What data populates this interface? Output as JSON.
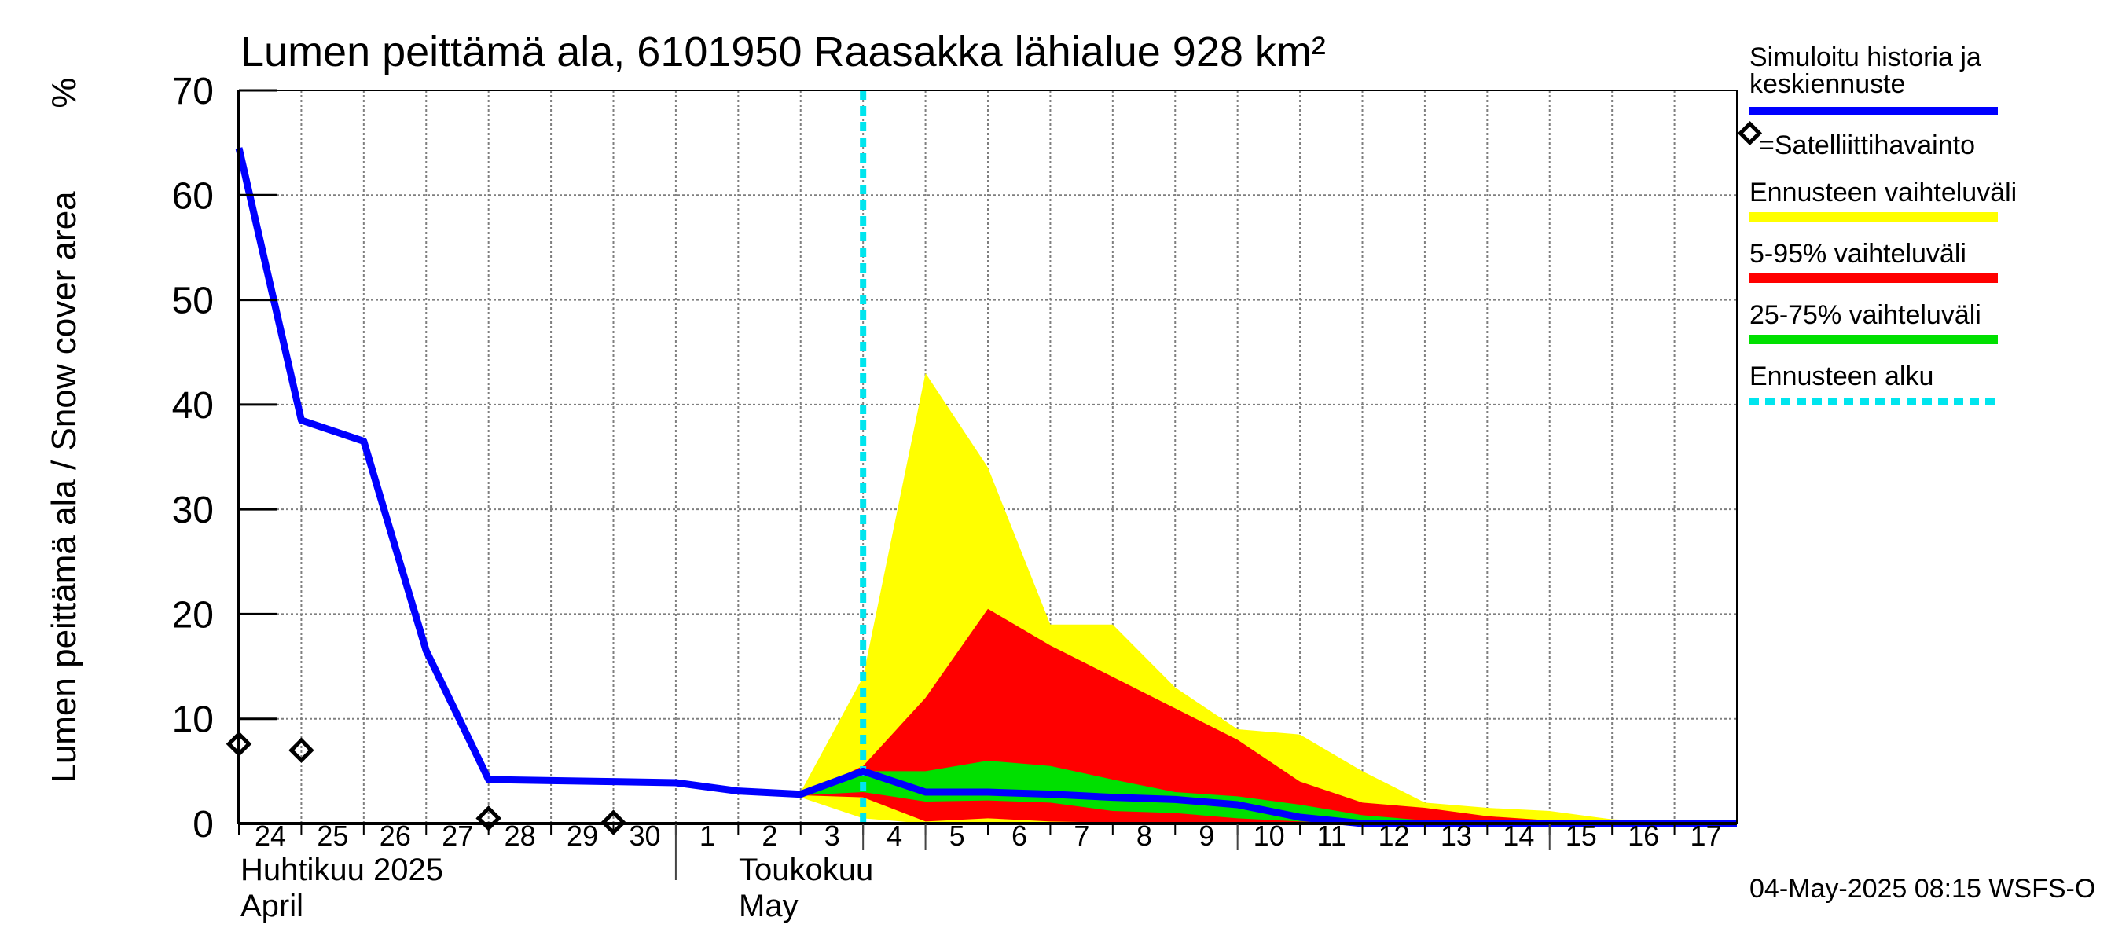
{
  "chart_data": {
    "type": "area",
    "title": "Lumen peittämä ala, 6101950 Raasakka lähialue 928 km²",
    "ylabel": "Lumen peittämä ala / Snow cover area",
    "yunit": "%",
    "ylim": [
      0,
      70
    ],
    "yticks": [
      0,
      10,
      20,
      30,
      40,
      50,
      60,
      70
    ],
    "xlim": [
      0,
      24
    ],
    "grid": true,
    "day_ticks": [
      {
        "x": 0,
        "label": "24"
      },
      {
        "x": 1,
        "label": "25"
      },
      {
        "x": 2,
        "label": "26"
      },
      {
        "x": 3,
        "label": "27"
      },
      {
        "x": 4,
        "label": "28"
      },
      {
        "x": 5,
        "label": "29"
      },
      {
        "x": 6,
        "label": "30"
      },
      {
        "x": 7,
        "label": "1"
      },
      {
        "x": 8,
        "label": "2"
      },
      {
        "x": 9,
        "label": "3"
      },
      {
        "x": 10,
        "label": "4"
      },
      {
        "x": 11,
        "label": "5"
      },
      {
        "x": 12,
        "label": "6"
      },
      {
        "x": 13,
        "label": "7"
      },
      {
        "x": 14,
        "label": "8"
      },
      {
        "x": 15,
        "label": "9"
      },
      {
        "x": 16,
        "label": "10"
      },
      {
        "x": 17,
        "label": "11"
      },
      {
        "x": 18,
        "label": "12"
      },
      {
        "x": 19,
        "label": "13"
      },
      {
        "x": 20,
        "label": "14"
      },
      {
        "x": 21,
        "label": "15"
      },
      {
        "x": 22,
        "label": "16"
      },
      {
        "x": 23,
        "label": "17"
      }
    ],
    "month_labels": {
      "april_fi": "Huhtikuu  2025",
      "april_en": "April",
      "may_fi": "Toukokuu",
      "may_en": "May"
    },
    "forecast_start_x": 10,
    "bands": [
      {
        "name": "Ennusteen vaihteluväli",
        "color": "#ffff00",
        "upper": [
          [
            9,
            3
          ],
          [
            10,
            14
          ],
          [
            11,
            43
          ],
          [
            12,
            34
          ],
          [
            13,
            19
          ],
          [
            14,
            19
          ],
          [
            15,
            13
          ],
          [
            16,
            9
          ],
          [
            17,
            8.5
          ],
          [
            18,
            5
          ],
          [
            19,
            2
          ],
          [
            20,
            1.5
          ],
          [
            21,
            1.2
          ],
          [
            22,
            0.4
          ],
          [
            23,
            0.2
          ],
          [
            24,
            0.1
          ]
        ],
        "lower": [
          [
            9,
            2.5
          ],
          [
            10,
            0.5
          ],
          [
            11,
            0
          ],
          [
            12,
            0
          ],
          [
            13,
            0
          ],
          [
            14,
            0
          ],
          [
            15,
            0
          ],
          [
            16,
            0
          ],
          [
            17,
            0
          ],
          [
            18,
            0
          ],
          [
            19,
            0
          ],
          [
            20,
            0
          ],
          [
            21,
            0
          ],
          [
            22,
            0
          ],
          [
            23,
            0
          ],
          [
            24,
            0
          ]
        ]
      },
      {
        "name": "5-95% vaihteluväli",
        "color": "#ff0000",
        "upper": [
          [
            9,
            2.7
          ],
          [
            10,
            5.5
          ],
          [
            11,
            12
          ],
          [
            12,
            20.5
          ],
          [
            13,
            17
          ],
          [
            14,
            14
          ],
          [
            15,
            11
          ],
          [
            16,
            8
          ],
          [
            17,
            4
          ],
          [
            18,
            2
          ],
          [
            19,
            1.5
          ],
          [
            20,
            0.7
          ],
          [
            21,
            0.3
          ],
          [
            22,
            0.1
          ],
          [
            23,
            0
          ],
          [
            24,
            0
          ]
        ],
        "lower": [
          [
            9,
            2.7
          ],
          [
            10,
            2.5
          ],
          [
            11,
            0.2
          ],
          [
            12,
            0.5
          ],
          [
            13,
            0.2
          ],
          [
            14,
            0.1
          ],
          [
            15,
            0
          ],
          [
            16,
            0
          ],
          [
            17,
            0
          ],
          [
            18,
            0
          ],
          [
            19,
            0
          ],
          [
            20,
            0
          ],
          [
            21,
            0
          ],
          [
            22,
            0
          ],
          [
            23,
            0
          ],
          [
            24,
            0
          ]
        ]
      },
      {
        "name": "25-75% vaihteluväli",
        "color": "#00e000",
        "upper": [
          [
            9,
            2.7
          ],
          [
            10,
            5
          ],
          [
            11,
            5
          ],
          [
            12,
            6
          ],
          [
            13,
            5.5
          ],
          [
            14,
            4.2
          ],
          [
            15,
            3
          ],
          [
            16,
            2.6
          ],
          [
            17,
            1.8
          ],
          [
            18,
            0.8
          ],
          [
            19,
            0.3
          ],
          [
            20,
            0.1
          ],
          [
            21,
            0
          ],
          [
            22,
            0
          ],
          [
            23,
            0
          ],
          [
            24,
            0
          ]
        ],
        "lower": [
          [
            9,
            2.7
          ],
          [
            10,
            3
          ],
          [
            11,
            2.1
          ],
          [
            12,
            2.2
          ],
          [
            13,
            2
          ],
          [
            14,
            1.2
          ],
          [
            15,
            1
          ],
          [
            16,
            0.5
          ],
          [
            17,
            0.2
          ],
          [
            18,
            0
          ],
          [
            19,
            0
          ],
          [
            20,
            0
          ],
          [
            21,
            0
          ],
          [
            22,
            0
          ],
          [
            23,
            0
          ],
          [
            24,
            0
          ]
        ]
      }
    ],
    "series": [
      {
        "name": "Simuloitu historia ja keskiennuste",
        "color": "#0000ff",
        "points": [
          [
            0,
            64.5
          ],
          [
            1,
            38.5
          ],
          [
            2,
            36.5
          ],
          [
            3,
            16.5
          ],
          [
            4,
            4.2
          ],
          [
            5,
            4.1
          ],
          [
            6,
            4
          ],
          [
            7,
            3.9
          ],
          [
            8,
            3.1
          ],
          [
            9,
            2.8
          ],
          [
            10,
            5
          ],
          [
            11,
            3
          ],
          [
            12,
            3
          ],
          [
            13,
            2.8
          ],
          [
            14,
            2.5
          ],
          [
            15,
            2.3
          ],
          [
            16,
            1.8
          ],
          [
            17,
            0.6
          ],
          [
            18,
            0
          ],
          [
            19,
            0
          ],
          [
            20,
            0
          ],
          [
            21,
            0
          ],
          [
            22,
            0
          ],
          [
            23,
            0
          ],
          [
            24,
            0
          ]
        ]
      }
    ],
    "satellite_points": [
      [
        0,
        7.6
      ],
      [
        1,
        7
      ],
      [
        4,
        0.5
      ],
      [
        6,
        0.1
      ]
    ],
    "legend": {
      "history_line1": "Simuloitu historia ja",
      "history_line2": "keskiennuste",
      "satellite": "=Satelliittihavainto",
      "forecast_range": "Ennusteen vaihteluväli",
      "range_5_95": "5-95% vaihteluväli",
      "range_25_75": "25-75% vaihteluväli",
      "forecast_start": "Ennusteen alku"
    },
    "colors": {
      "forecast_start_line": "#00e5ee",
      "grid": "#7f7f7f",
      "satellite_marker": "#000000"
    },
    "footer": "04-May-2025 08:15 WSFS-O"
  }
}
